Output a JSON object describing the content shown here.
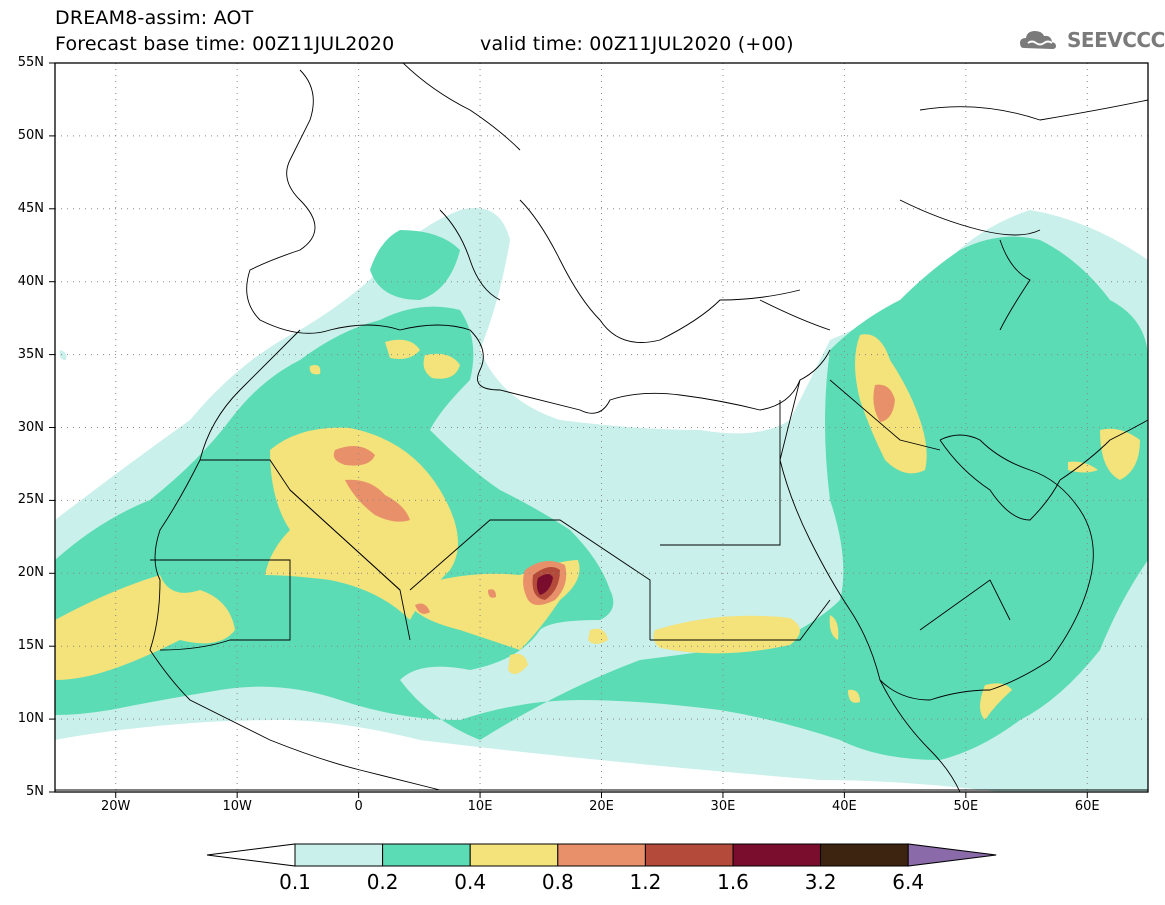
{
  "header": {
    "line1": "DREAM8-assim: AOT",
    "line2": "Forecast base time: 00Z11JUL2020",
    "line3": "valid time: 00Z11JUL2020 (+00)",
    "logo_text": "SEEVCCC",
    "logo_icon": "cloud-icon"
  },
  "map": {
    "lat_range": [
      5,
      55
    ],
    "lon_range": [
      -25,
      65
    ],
    "lat_ticks": [
      {
        "value": 55,
        "label": "55N"
      },
      {
        "value": 50,
        "label": "50N"
      },
      {
        "value": 45,
        "label": "45N"
      },
      {
        "value": 40,
        "label": "40N"
      },
      {
        "value": 35,
        "label": "35N"
      },
      {
        "value": 30,
        "label": "30N"
      },
      {
        "value": 25,
        "label": "25N"
      },
      {
        "value": 20,
        "label": "20N"
      },
      {
        "value": 15,
        "label": "15N"
      },
      {
        "value": 10,
        "label": "10N"
      },
      {
        "value": 5,
        "label": "5N"
      }
    ],
    "lon_ticks": [
      {
        "value": -20,
        "label": "20W"
      },
      {
        "value": -10,
        "label": "10W"
      },
      {
        "value": 0,
        "label": "0"
      },
      {
        "value": 10,
        "label": "10E"
      },
      {
        "value": 20,
        "label": "20E"
      },
      {
        "value": 30,
        "label": "30E"
      },
      {
        "value": 40,
        "label": "40E"
      },
      {
        "value": 50,
        "label": "50E"
      },
      {
        "value": 60,
        "label": "60E"
      }
    ],
    "grid": "dotted",
    "field": "AOT"
  },
  "colorbar": {
    "levels": [
      "0.1",
      "0.2",
      "0.4",
      "0.8",
      "1.2",
      "1.6",
      "3.2",
      "6.4"
    ],
    "colors": [
      "#c9f0ea",
      "#5cdcb4",
      "#f4e27a",
      "#e8906a",
      "#b34a3a",
      "#7a0c2e",
      "#3d2410"
    ],
    "under_color": "#ffffff",
    "over_color": "#8a6aa8"
  }
}
